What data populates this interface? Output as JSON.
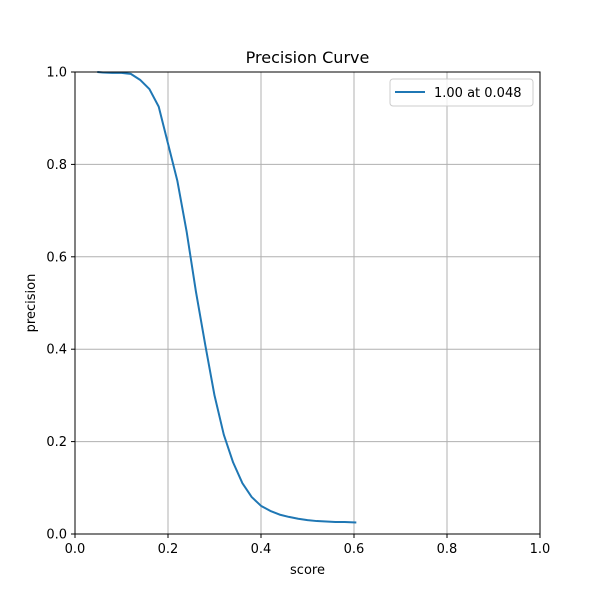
{
  "chart_data": {
    "type": "line",
    "title": "Precision Curve",
    "xlabel": "score",
    "ylabel": "precision",
    "xlim": [
      0.0,
      1.0
    ],
    "ylim": [
      0.0,
      1.0
    ],
    "xticks": [
      "0.0",
      "0.2",
      "0.4",
      "0.6",
      "0.8",
      "1.0"
    ],
    "yticks": [
      "0.0",
      "0.2",
      "0.4",
      "0.6",
      "0.8",
      "1.0"
    ],
    "grid": true,
    "legend_position": "top-right",
    "series": [
      {
        "name": "1.00 at 0.048",
        "color": "#1f77b4",
        "x": [
          0.048,
          0.06,
          0.08,
          0.1,
          0.12,
          0.14,
          0.16,
          0.18,
          0.2,
          0.22,
          0.24,
          0.26,
          0.28,
          0.3,
          0.32,
          0.34,
          0.36,
          0.38,
          0.4,
          0.42,
          0.44,
          0.46,
          0.48,
          0.5,
          0.52,
          0.54,
          0.56,
          0.58,
          0.605
        ],
        "y": [
          1.0,
          0.999,
          0.998,
          0.998,
          0.996,
          0.983,
          0.963,
          0.925,
          0.845,
          0.765,
          0.655,
          0.525,
          0.41,
          0.3,
          0.215,
          0.155,
          0.11,
          0.08,
          0.061,
          0.05,
          0.042,
          0.037,
          0.033,
          0.03,
          0.028,
          0.027,
          0.026,
          0.026,
          0.025
        ]
      }
    ]
  }
}
